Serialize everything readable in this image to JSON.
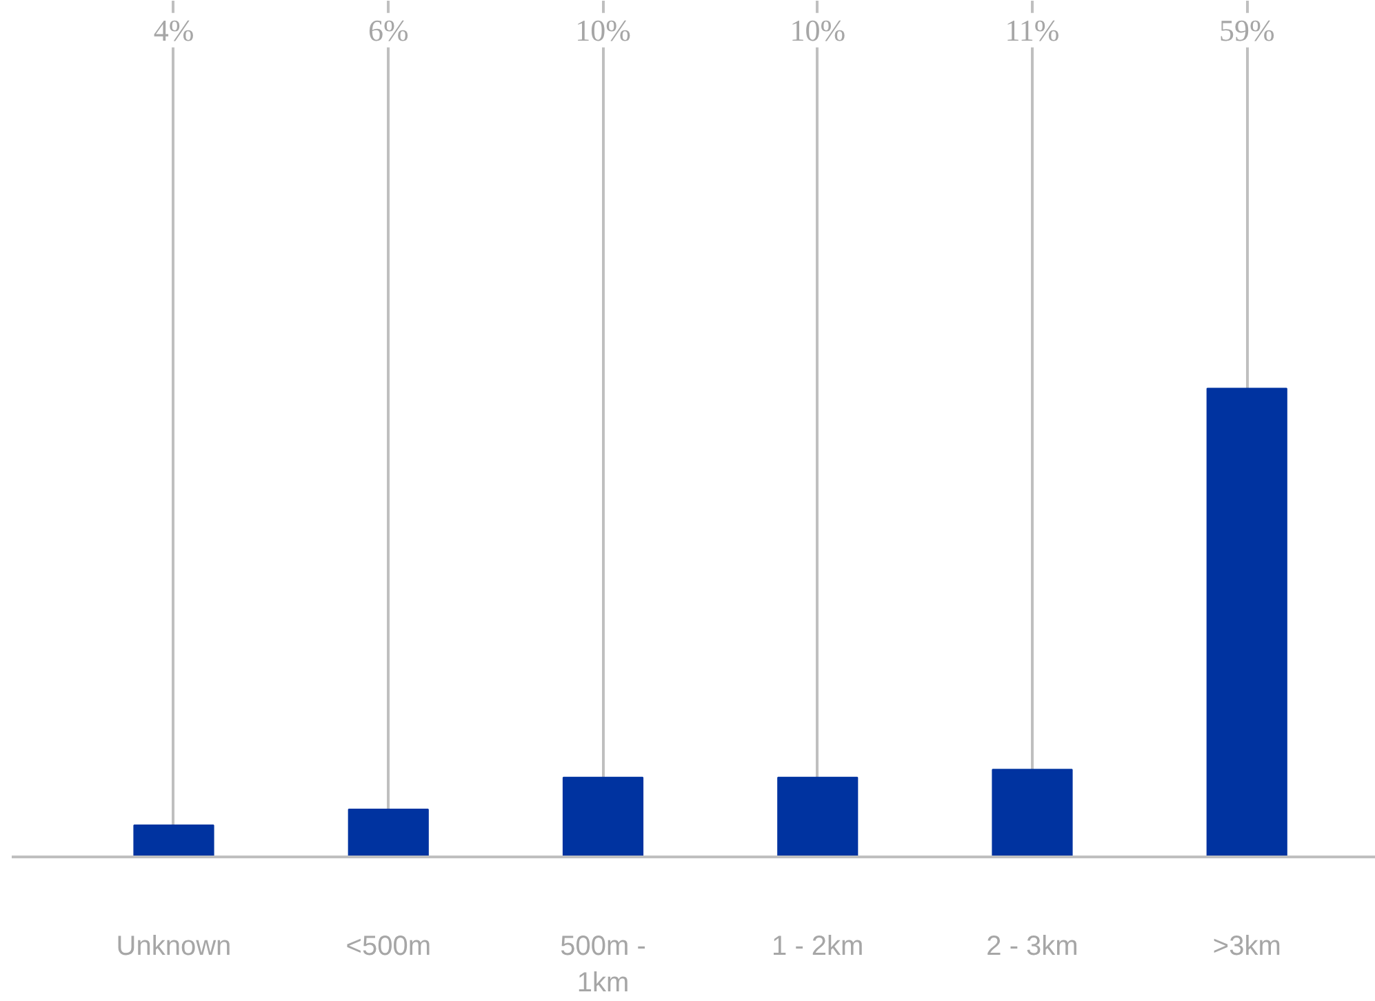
{
  "chart_data": {
    "type": "bar",
    "categories": [
      "Unknown",
      "<500m",
      "500m - 1km",
      "1 - 2km",
      "2 - 3km",
      ">3km"
    ],
    "values": [
      4,
      6,
      10,
      10,
      11,
      59
    ],
    "value_labels": [
      "4%",
      "6%",
      "10%",
      "10%",
      "11%",
      "59%"
    ],
    "color": "#0033a0",
    "grid": "x"
  }
}
